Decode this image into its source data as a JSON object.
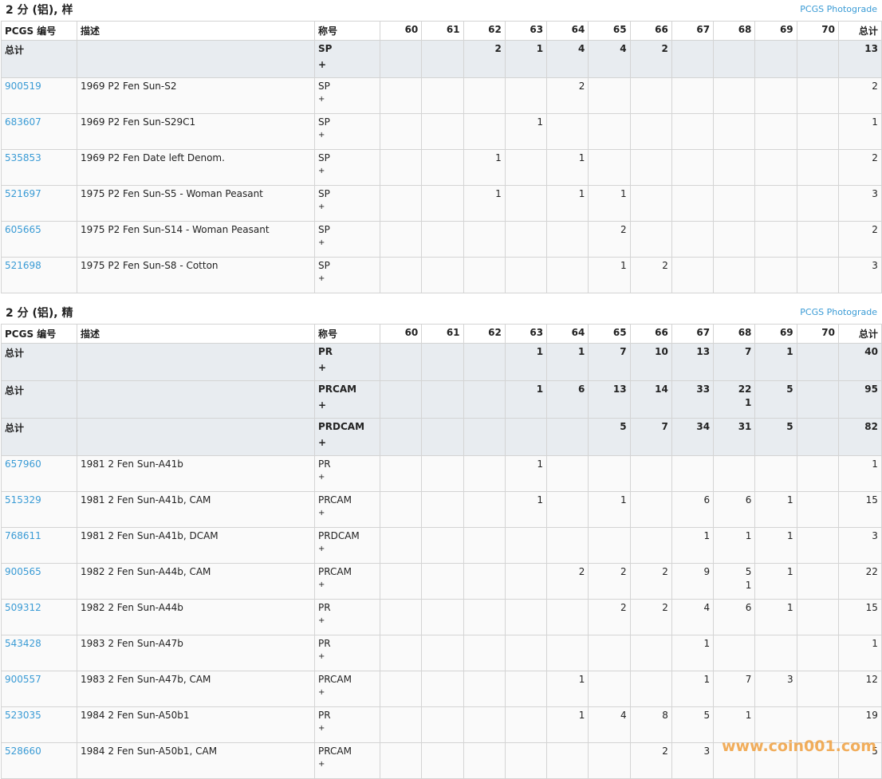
{
  "sections": [
    {
      "title": "2 分 (铝), 样",
      "link": "PCGS Photograde",
      "header": [
        "PCGS 编号",
        "描述",
        "称号",
        "60",
        "61",
        "62",
        "63",
        "64",
        "65",
        "66",
        "67",
        "68",
        "69",
        "70",
        "总计"
      ],
      "summary_rows": [
        {
          "code": "总计",
          "designation": "SP",
          "suffix": "+",
          "counts": [
            null,
            null,
            2,
            1,
            4,
            4,
            2,
            null,
            null,
            null,
            null
          ],
          "total": 13
        }
      ],
      "rows": [
        {
          "code": "900519",
          "desc": "1969 P2 Fen Sun-S2",
          "designation": "SP",
          "suffix": "+",
          "counts": [
            null,
            null,
            null,
            null,
            2,
            null,
            null,
            null,
            null,
            null,
            null
          ],
          "total": 2
        },
        {
          "code": "683607",
          "desc": "1969 P2 Fen Sun-S29C1",
          "designation": "SP",
          "suffix": "+",
          "counts": [
            null,
            null,
            null,
            1,
            null,
            null,
            null,
            null,
            null,
            null,
            null
          ],
          "total": 1
        },
        {
          "code": "535853",
          "desc": "1969 P2 Fen Date left Denom.",
          "designation": "SP",
          "suffix": "+",
          "counts": [
            null,
            null,
            1,
            null,
            1,
            null,
            null,
            null,
            null,
            null,
            null
          ],
          "total": 2
        },
        {
          "code": "521697",
          "desc": "1975 P2 Fen Sun-S5 - Woman Peasant",
          "designation": "SP",
          "suffix": "+",
          "counts": [
            null,
            null,
            1,
            null,
            1,
            1,
            null,
            null,
            null,
            null,
            null
          ],
          "total": 3
        },
        {
          "code": "605665",
          "desc": "1975 P2 Fen Sun-S14 - Woman Peasant",
          "designation": "SP",
          "suffix": "+",
          "counts": [
            null,
            null,
            null,
            null,
            null,
            2,
            null,
            null,
            null,
            null,
            null
          ],
          "total": 2
        },
        {
          "code": "521698",
          "desc": "1975 P2 Fen Sun-S8 - Cotton",
          "designation": "SP",
          "suffix": "+",
          "counts": [
            null,
            null,
            null,
            null,
            null,
            1,
            2,
            null,
            null,
            null,
            null
          ],
          "total": 3
        }
      ]
    },
    {
      "title": "2 分 (铝), 精",
      "link": "PCGS Photograde",
      "header": [
        "PCGS 编号",
        "描述",
        "称号",
        "60",
        "61",
        "62",
        "63",
        "64",
        "65",
        "66",
        "67",
        "68",
        "69",
        "70",
        "总计"
      ],
      "summary_rows": [
        {
          "code": "总计",
          "designation": "PR",
          "suffix": "+",
          "counts": [
            null,
            null,
            null,
            1,
            1,
            7,
            10,
            13,
            7,
            1,
            null
          ],
          "total": 40
        },
        {
          "code": "总计",
          "designation": "PRCAM",
          "suffix": "+",
          "counts": [
            null,
            null,
            null,
            1,
            6,
            13,
            14,
            33,
            22,
            5,
            null
          ],
          "plus_counts": [
            null,
            null,
            null,
            null,
            null,
            null,
            null,
            null,
            1,
            null,
            null
          ],
          "total": 95
        },
        {
          "code": "总计",
          "designation": "PRDCAM",
          "suffix": "+",
          "counts": [
            null,
            null,
            null,
            null,
            null,
            5,
            7,
            34,
            31,
            5,
            null
          ],
          "total": 82
        }
      ],
      "rows": [
        {
          "code": "657960",
          "desc": "1981 2 Fen Sun-A41b",
          "designation": "PR",
          "suffix": "+",
          "counts": [
            null,
            null,
            null,
            1,
            null,
            null,
            null,
            null,
            null,
            null,
            null
          ],
          "total": 1
        },
        {
          "code": "515329",
          "desc": "1981 2 Fen Sun-A41b, CAM",
          "designation": "PRCAM",
          "suffix": "+",
          "counts": [
            null,
            null,
            null,
            1,
            null,
            1,
            null,
            6,
            6,
            1,
            null
          ],
          "total": 15
        },
        {
          "code": "768611",
          "desc": "1981 2 Fen Sun-A41b, DCAM",
          "designation": "PRDCAM",
          "suffix": "+",
          "counts": [
            null,
            null,
            null,
            null,
            null,
            null,
            null,
            1,
            1,
            1,
            null
          ],
          "total": 3
        },
        {
          "code": "900565",
          "desc": "1982 2 Fen Sun-A44b, CAM",
          "designation": "PRCAM",
          "suffix": "+",
          "counts": [
            null,
            null,
            null,
            null,
            2,
            2,
            2,
            9,
            5,
            1,
            null
          ],
          "plus_counts": [
            null,
            null,
            null,
            null,
            null,
            null,
            null,
            null,
            1,
            null,
            null
          ],
          "total": 22
        },
        {
          "code": "509312",
          "desc": "1982 2 Fen Sun-A44b",
          "designation": "PR",
          "suffix": "+",
          "counts": [
            null,
            null,
            null,
            null,
            null,
            2,
            2,
            4,
            6,
            1,
            null
          ],
          "total": 15
        },
        {
          "code": "543428",
          "desc": "1983 2 Fen Sun-A47b",
          "designation": "PR",
          "suffix": "+",
          "counts": [
            null,
            null,
            null,
            null,
            null,
            null,
            null,
            1,
            null,
            null,
            null
          ],
          "total": 1
        },
        {
          "code": "900557",
          "desc": "1983 2 Fen Sun-A47b, CAM",
          "designation": "PRCAM",
          "suffix": "+",
          "counts": [
            null,
            null,
            null,
            null,
            1,
            null,
            null,
            1,
            7,
            3,
            null
          ],
          "total": 12
        },
        {
          "code": "523035",
          "desc": "1984 2 Fen Sun-A50b1",
          "designation": "PR",
          "suffix": "+",
          "counts": [
            null,
            null,
            null,
            null,
            1,
            4,
            8,
            5,
            1,
            null,
            null
          ],
          "total": 19
        },
        {
          "code": "528660",
          "desc": "1984 2 Fen Sun-A50b1, CAM",
          "designation": "PRCAM",
          "suffix": "+",
          "counts": [
            null,
            null,
            null,
            null,
            null,
            null,
            2,
            3,
            null,
            null,
            null
          ],
          "total": 5
        }
      ]
    }
  ],
  "watermark": "www.coin001.com"
}
